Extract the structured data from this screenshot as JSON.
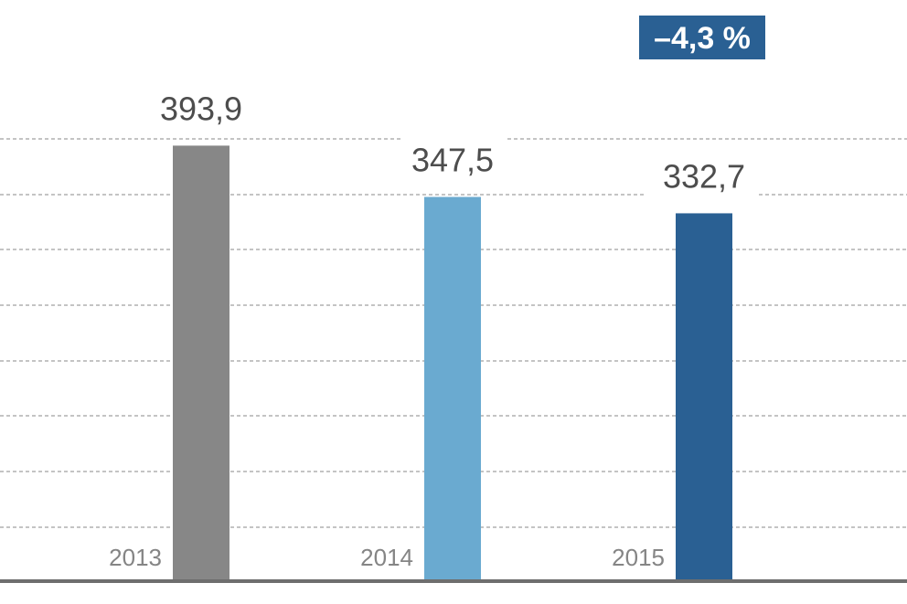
{
  "chart_data": {
    "type": "bar",
    "categories": [
      "2013",
      "2014",
      "2015"
    ],
    "values": [
      393.9,
      347.5,
      332.7
    ],
    "value_labels": [
      "393,9",
      "347,5",
      "332,7"
    ],
    "colors": [
      "#878787",
      "#6aaad0",
      "#2a6093"
    ],
    "annotation": "–4,3 %",
    "annotation_color": "#2a6093",
    "grid": true,
    "ylim": [
      0,
      400
    ]
  }
}
